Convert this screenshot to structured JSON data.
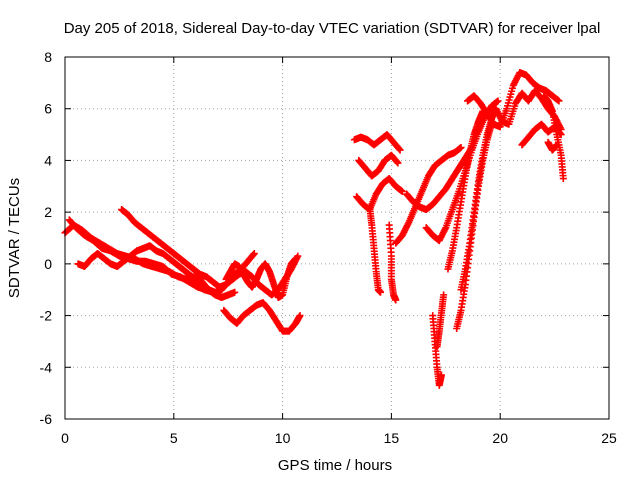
{
  "chart_data": {
    "type": "scatter",
    "title": "Day 205 of 2018, Sidereal Day-to-day VTEC variation (SDTVAR) for receiver lpal",
    "xlabel": "GPS time / hours",
    "ylabel": "SDTVAR / TECUs",
    "xlim": [
      0,
      25
    ],
    "ylim": [
      -6,
      8
    ],
    "xticks": [
      "0",
      "5",
      "10",
      "15",
      "20",
      "25"
    ],
    "yticks": [
      "-6",
      "-4",
      "-2",
      "0",
      "2",
      "4",
      "6",
      "8"
    ],
    "grid": true,
    "marker": "+",
    "color": "#ff0000",
    "series": [
      {
        "name": "track-1",
        "x": [
          0.0,
          0.4,
          0.8,
          1.2,
          1.6,
          2.0,
          2.4,
          2.8,
          3.2,
          3.6,
          4.0,
          4.4,
          4.8,
          5.2,
          5.6,
          6.0,
          6.4,
          6.8
        ],
        "y": [
          1.2,
          1.5,
          1.3,
          1.0,
          0.8,
          0.6,
          0.4,
          0.3,
          0.2,
          0.0,
          -0.1,
          -0.2,
          -0.3,
          -0.5,
          -0.6,
          -0.8,
          -1.0,
          -1.1
        ]
      },
      {
        "name": "track-2",
        "x": [
          0.2,
          0.5,
          0.9,
          1.3,
          1.7,
          2.1,
          2.5,
          2.9,
          3.3,
          3.7,
          4.1,
          4.5,
          4.9,
          5.3,
          5.7,
          6.1,
          6.5
        ],
        "y": [
          1.7,
          1.4,
          1.1,
          0.9,
          0.6,
          0.5,
          0.3,
          0.2,
          0.1,
          0.1,
          0.0,
          -0.1,
          -0.4,
          -0.5,
          -0.7,
          -0.9,
          -1.0
        ]
      },
      {
        "name": "track-3",
        "x": [
          0.6,
          0.9,
          1.2,
          1.5,
          1.8,
          2.1,
          2.4,
          2.7,
          3.0,
          3.3,
          3.6,
          3.9,
          4.2,
          4.5,
          4.8,
          5.1,
          5.4,
          5.7,
          6.0,
          6.3,
          6.6,
          6.9,
          7.2,
          7.5,
          7.8
        ],
        "y": [
          0.0,
          -0.1,
          0.2,
          0.4,
          0.2,
          0.0,
          -0.1,
          0.1,
          0.3,
          0.5,
          0.6,
          0.7,
          0.5,
          0.4,
          0.2,
          0.0,
          -0.2,
          -0.4,
          -0.6,
          -0.8,
          -1.0,
          -1.2,
          -1.3,
          -1.2,
          -1.1
        ]
      },
      {
        "name": "track-4",
        "x": [
          2.6,
          2.9,
          3.2,
          3.5,
          3.8,
          4.1,
          4.4,
          4.7,
          5.0,
          5.3,
          5.6,
          5.9,
          6.2,
          6.5,
          6.8,
          7.1,
          7.4,
          7.7,
          8.0,
          8.3,
          8.6,
          8.9,
          9.2,
          9.5,
          9.8,
          10.1,
          10.4,
          10.7
        ],
        "y": [
          2.1,
          1.9,
          1.6,
          1.4,
          1.2,
          1.0,
          0.8,
          0.6,
          0.4,
          0.2,
          0.0,
          -0.2,
          -0.4,
          -0.5,
          -0.7,
          -0.9,
          -0.8,
          -0.6,
          -0.4,
          -0.3,
          -0.5,
          -0.8,
          -1.0,
          -1.2,
          -1.0,
          -0.6,
          -0.2,
          0.3
        ]
      },
      {
        "name": "track-5",
        "x": [
          7.3,
          7.6,
          7.9,
          8.2,
          8.5,
          8.8,
          9.1,
          9.4,
          9.7,
          10.0,
          10.3,
          10.6,
          10.8
        ],
        "y": [
          -1.8,
          -2.1,
          -2.3,
          -2.0,
          -1.8,
          -1.6,
          -1.5,
          -1.8,
          -2.2,
          -2.6,
          -2.6,
          -2.3,
          -2.0
        ]
      },
      {
        "name": "track-6",
        "x": [
          7.4,
          7.6,
          7.8,
          8.0,
          8.2,
          8.4,
          8.6,
          8.8,
          9.0,
          9.2,
          9.4,
          9.6,
          9.8,
          10.0,
          10.2,
          10.4,
          10.6
        ],
        "y": [
          -0.6,
          -0.3,
          0.0,
          -0.1,
          -0.4,
          -0.7,
          -0.9,
          -0.6,
          -0.2,
          0.0,
          -0.3,
          -0.8,
          -1.3,
          -1.2,
          -0.5,
          0.0,
          0.2
        ]
      },
      {
        "name": "track-7",
        "x": [
          6.0,
          6.3,
          6.6,
          6.9,
          7.2,
          7.5,
          7.8,
          8.1,
          8.4,
          8.7
        ],
        "y": [
          -0.4,
          -0.7,
          -1.0,
          -1.1,
          -1.0,
          -0.7,
          -0.4,
          -0.2,
          0.1,
          0.4
        ]
      },
      {
        "name": "track-8",
        "x": [
          13.3,
          13.6,
          13.9,
          14.2,
          14.5,
          14.8,
          15.1,
          15.4
        ],
        "y": [
          4.8,
          4.9,
          4.8,
          4.6,
          4.8,
          5.0,
          4.7,
          4.4
        ]
      },
      {
        "name": "track-9",
        "x": [
          13.5,
          13.8,
          14.1,
          14.4,
          14.7,
          15.0,
          15.3
        ],
        "y": [
          4.0,
          3.7,
          3.4,
          3.6,
          4.0,
          4.2,
          3.9
        ]
      },
      {
        "name": "track-10",
        "x": [
          13.4,
          13.7,
          14.0,
          14.3,
          14.6,
          14.9,
          15.2,
          15.5
        ],
        "y": [
          2.6,
          2.3,
          2.1,
          2.7,
          3.1,
          3.3,
          3.0,
          2.8
        ]
      },
      {
        "name": "track-11",
        "x": [
          14.0,
          14.1,
          14.2,
          14.3,
          14.4,
          14.5
        ],
        "y": [
          2.2,
          1.5,
          0.6,
          -0.3,
          -1.0,
          -1.1
        ]
      },
      {
        "name": "track-12",
        "x": [
          14.9,
          15.0,
          15.0,
          15.1,
          15.2
        ],
        "y": [
          1.5,
          0.3,
          -0.6,
          -1.2,
          -1.4
        ]
      },
      {
        "name": "track-13",
        "x": [
          15.2,
          15.5,
          15.8,
          16.1,
          16.4,
          16.7,
          17.0,
          17.3,
          17.6,
          17.9,
          18.2
        ],
        "y": [
          0.8,
          1.1,
          1.6,
          2.2,
          2.8,
          3.4,
          3.8,
          4.0,
          4.2,
          4.3,
          4.5
        ]
      },
      {
        "name": "track-14",
        "x": [
          15.7,
          16.0,
          16.3,
          16.6,
          16.9,
          17.2,
          17.5,
          17.8,
          18.1,
          18.4,
          18.7
        ],
        "y": [
          2.7,
          2.4,
          2.2,
          2.1,
          2.3,
          2.6,
          2.9,
          3.3,
          3.7,
          4.1,
          4.5
        ]
      },
      {
        "name": "track-15",
        "x": [
          16.6,
          16.9,
          17.2,
          17.5,
          17.8,
          18.1,
          18.4,
          18.7,
          19.0,
          19.3,
          19.6,
          19.9
        ],
        "y": [
          1.4,
          1.1,
          0.9,
          1.4,
          2.1,
          2.8,
          3.6,
          4.4,
          5.1,
          5.7,
          6.1,
          6.3
        ]
      },
      {
        "name": "track-16",
        "x": [
          16.9,
          17.0,
          17.1,
          17.2,
          17.3
        ],
        "y": [
          -2.0,
          -3.0,
          -4.0,
          -4.7,
          -4.3
        ]
      },
      {
        "name": "track-17",
        "x": [
          17.1,
          17.2,
          17.3,
          17.4
        ],
        "y": [
          -3.2,
          -2.6,
          -1.9,
          -1.2
        ]
      },
      {
        "name": "track-18",
        "x": [
          17.6,
          17.8,
          18.0,
          18.2,
          18.4,
          18.6,
          18.8,
          19.0,
          19.2
        ],
        "y": [
          -0.2,
          0.5,
          1.4,
          2.4,
          3.4,
          4.3,
          5.0,
          5.5,
          5.9
        ]
      },
      {
        "name": "track-19",
        "x": [
          18.0,
          18.2,
          18.4,
          18.6,
          18.8,
          19.0,
          19.2,
          19.4,
          19.6
        ],
        "y": [
          -2.5,
          -1.8,
          -0.8,
          0.5,
          1.8,
          3.0,
          4.0,
          4.8,
          5.4
        ]
      },
      {
        "name": "track-20",
        "x": [
          18.2,
          18.4,
          18.6,
          18.8,
          19.0,
          19.2,
          19.4,
          19.6,
          19.8
        ],
        "y": [
          -1.0,
          -0.2,
          0.8,
          2.0,
          3.2,
          4.2,
          5.0,
          5.6,
          6.0
        ]
      },
      {
        "name": "track-21",
        "x": [
          18.5,
          18.8,
          19.1,
          19.4,
          19.7,
          20.0,
          20.3,
          20.6,
          20.9,
          21.2,
          21.5,
          21.8,
          22.1,
          22.4,
          22.7
        ],
        "y": [
          6.3,
          6.5,
          6.2,
          5.8,
          5.4,
          5.3,
          6.0,
          6.9,
          7.4,
          7.3,
          7.0,
          6.8,
          6.7,
          6.5,
          6.3
        ]
      },
      {
        "name": "track-22",
        "x": [
          19.8,
          20.1,
          20.4,
          20.7,
          21.0,
          21.3,
          21.6,
          21.9,
          22.2,
          22.5,
          22.8
        ],
        "y": [
          6.0,
          5.5,
          5.4,
          6.2,
          6.6,
          6.3,
          6.7,
          6.4,
          6.0,
          5.7,
          5.2
        ]
      },
      {
        "name": "track-23",
        "x": [
          21.0,
          21.3,
          21.6,
          21.9,
          22.2,
          22.5,
          22.8
        ],
        "y": [
          4.6,
          4.9,
          5.2,
          5.4,
          5.1,
          5.3,
          5.0
        ]
      },
      {
        "name": "track-24",
        "x": [
          22.0,
          22.2,
          22.4,
          22.6,
          22.8,
          22.9
        ],
        "y": [
          6.5,
          6.3,
          5.9,
          5.0,
          4.2,
          3.3
        ]
      },
      {
        "name": "track-25",
        "x": [
          22.2,
          22.4,
          22.6
        ],
        "y": [
          4.7,
          4.4,
          4.6
        ]
      }
    ]
  }
}
